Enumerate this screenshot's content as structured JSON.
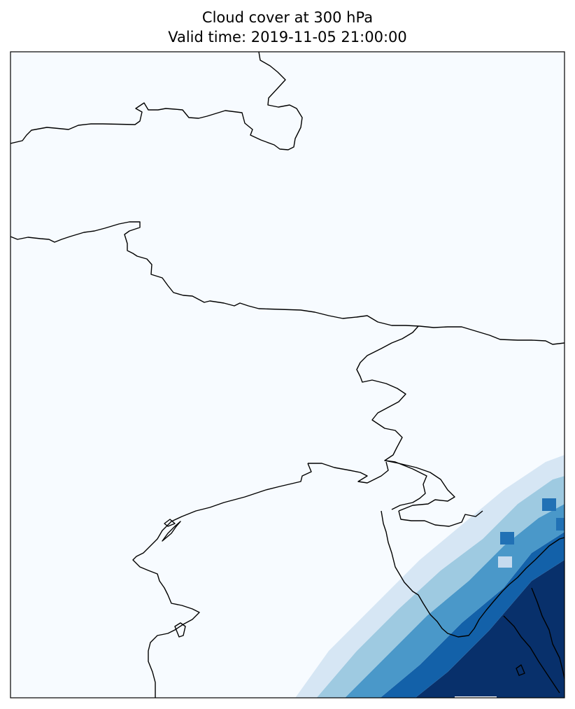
{
  "title_line1": "Cloud cover at 300 hPa",
  "title_line2": "Valid time: 2019-11-05 21:00:00",
  "colormap": "Blues",
  "map": {
    "background_color": "#f7fbff",
    "coastline_color": "#000000",
    "projection": "PlateCarree"
  }
}
